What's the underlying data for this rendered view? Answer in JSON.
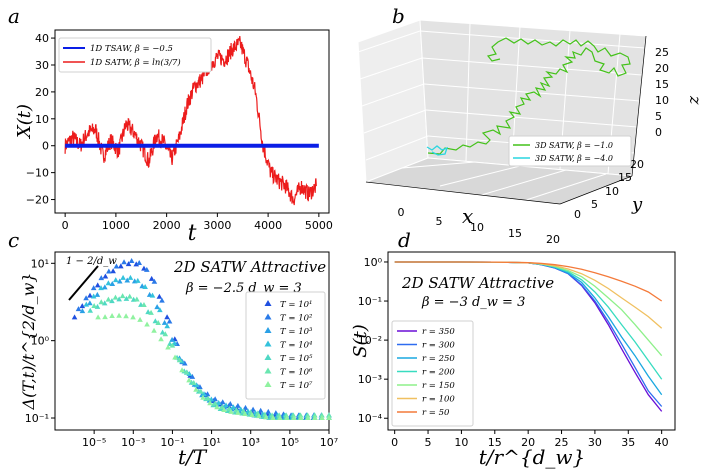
{
  "colors": {
    "tsaw": "#0a1ee6",
    "satw": "#ec1c1c",
    "green3d": "#44c21a",
    "cyan3d": "#2ad6e0",
    "pane_left": "#eeeeee",
    "pane_right": "#e3e3e3",
    "pane_floor": "#d8d8d8"
  },
  "panel_labels": {
    "a": "a",
    "b": "b",
    "c": "c",
    "d": "d"
  },
  "chart_data": [
    {
      "panel": "a",
      "type": "line",
      "xlabel": "t",
      "ylabel": "X(t)",
      "xlim": [
        -200,
        5200
      ],
      "ylim": [
        -25,
        43
      ],
      "xticks": [
        "0",
        "1000",
        "2000",
        "3000",
        "4000",
        "5000"
      ],
      "yticks": [
        "−20",
        "−10",
        "0",
        "10",
        "20",
        "30",
        "40"
      ],
      "legend_position": "top-left",
      "series": [
        {
          "name": "1D TSAW, β = −0.5",
          "color": "#0a1ee6",
          "x": [
            0,
            5000
          ],
          "y": [
            0,
            0
          ]
        },
        {
          "name": "1D SATW, β = ln(3/7)",
          "color": "#ec1c1c",
          "x": [
            0,
            150,
            300,
            450,
            600,
            750,
            900,
            1050,
            1200,
            1350,
            1500,
            1650,
            1800,
            1950,
            2100,
            2250,
            2400,
            2550,
            2700,
            2850,
            3000,
            3150,
            3300,
            3450,
            3600,
            3750,
            3900,
            4050,
            4200,
            4350,
            4500,
            4650,
            4800,
            4950
          ],
          "y": [
            0,
            3,
            0,
            5,
            6,
            -4,
            2,
            -2,
            8,
            5,
            0,
            -6,
            4,
            1,
            -5,
            3,
            15,
            22,
            25,
            30,
            33,
            32,
            36,
            38,
            30,
            20,
            0,
            -10,
            -13,
            -15,
            -20,
            -15,
            -18,
            -15
          ]
        }
      ]
    },
    {
      "panel": "b",
      "type": "scatter",
      "xlabel": "x",
      "ylabel": "y",
      "zlabel": "z",
      "xticks": [
        "0",
        "5",
        "10",
        "15",
        "20"
      ],
      "yticks": [
        "0",
        "5",
        "10",
        "15",
        "20"
      ],
      "zticks": [
        "0",
        "5",
        "10",
        "15",
        "20",
        "25"
      ],
      "legend_position": "center-right",
      "series": [
        {
          "name": "3D SATW, β = −1.0",
          "color": "#44c21a"
        },
        {
          "name": "3D SATW, β = −4.0",
          "color": "#2ad6e0"
        }
      ]
    },
    {
      "panel": "c",
      "type": "scatter",
      "title": "2D SATW Attractive",
      "annotation": "β = −2.5  d_w = 3",
      "slope_label": "1 − 2/d_w",
      "xlabel": "t/T",
      "ylabel": "Δ(T,t)/t^{2/d_w}",
      "xscale": "log",
      "yscale": "log",
      "xlim": [
        1e-07,
        10000000.0
      ],
      "ylim": [
        0.07,
        14
      ],
      "xticks": [
        "10⁻⁵",
        "10⁻³",
        "10⁻¹",
        "10¹",
        "10³",
        "10⁵",
        "10⁷"
      ],
      "yticks": [
        "10⁻¹",
        "10⁰",
        "10¹"
      ],
      "legend_position": "center-right",
      "series": [
        {
          "name": "T = 10¹",
          "peak": 0.1
        },
        {
          "name": "T = 10²",
          "peak": 0.1
        },
        {
          "name": "T = 10³",
          "peak": 0.1
        },
        {
          "name": "T = 10⁴",
          "peak": 0.1
        },
        {
          "name": "T = 10⁵",
          "peak": 0.1
        },
        {
          "name": "T = 10⁶",
          "peak": 0.1
        },
        {
          "name": "T = 10⁷",
          "peak": 0.1
        }
      ],
      "curves": {
        "x": [
          1e-06,
          3e-06,
          1e-05,
          3e-05,
          0.0001,
          0.0003,
          0.001,
          0.003,
          0.01,
          0.03,
          0.1,
          0.3,
          1,
          3,
          10,
          30,
          100,
          1000,
          10000.0,
          100000.0,
          1000000.0,
          10000000.0
        ],
        "y_top": [
          2.0,
          3.0,
          4.5,
          6.5,
          8.0,
          9.5,
          10.0,
          9.0,
          6.0,
          3.0,
          1.3,
          0.55,
          0.32,
          0.22,
          0.17,
          0.15,
          0.14,
          0.12,
          0.11,
          0.1,
          0.1,
          0.1
        ],
        "y_mid": [
          2.0,
          2.5,
          3.5,
          4.8,
          5.5,
          6.0,
          6.0,
          5.0,
          3.5,
          2.0,
          1.0,
          0.5,
          0.3,
          0.2,
          0.16,
          0.14,
          0.13,
          0.11,
          0.1,
          0.1,
          0.1,
          0.1
        ],
        "y_low": [
          2.0,
          2.2,
          2.6,
          3.0,
          3.3,
          3.5,
          3.4,
          2.8,
          2.0,
          1.3,
          0.8,
          0.45,
          0.28,
          0.2,
          0.15,
          0.13,
          0.12,
          0.11,
          0.1,
          0.1,
          0.1,
          0.1
        ],
        "y_bot": [
          2.0,
          2.0,
          2.0,
          2.0,
          2.1,
          2.1,
          2.0,
          1.8,
          1.4,
          1.0,
          0.7,
          0.42,
          0.27,
          0.19,
          0.15,
          0.13,
          0.12,
          0.11,
          0.1,
          0.1,
          0.1,
          0.1
        ]
      }
    },
    {
      "panel": "d",
      "type": "line",
      "title": "2D SATW Attractive",
      "annotation": "β = −3   d_w = 3",
      "xlabel": "t/r^{d_w}",
      "ylabel": "S(t)",
      "yscale": "log",
      "xlim": [
        -1,
        42
      ],
      "ylim": [
        5e-05,
        1.8
      ],
      "xticks": [
        "0",
        "5",
        "10",
        "15",
        "20",
        "25",
        "30",
        "35",
        "40"
      ],
      "yticks": [
        "10⁻⁴",
        "10⁻³",
        "10⁻²",
        "10⁻¹",
        "10⁰"
      ],
      "legend_position": "bottom-left",
      "x": [
        0,
        5,
        10,
        15,
        20,
        22,
        24,
        26,
        28,
        30,
        32,
        34,
        36,
        38,
        40
      ],
      "series": [
        {
          "name": "r = 350",
          "color": "#6a0fd6",
          "values": [
            1,
            1,
            1,
            0.99,
            0.95,
            0.85,
            0.7,
            0.5,
            0.25,
            0.09,
            0.025,
            0.006,
            0.0015,
            0.0004,
            0.00015
          ]
        },
        {
          "name": "r = 300",
          "color": "#2e6cf0",
          "values": [
            1,
            1,
            1,
            0.99,
            0.95,
            0.85,
            0.7,
            0.5,
            0.26,
            0.1,
            0.03,
            0.008,
            0.002,
            0.0005,
            0.0002
          ]
        },
        {
          "name": "r = 250",
          "color": "#1aa8e0",
          "values": [
            1,
            1,
            1,
            0.99,
            0.95,
            0.86,
            0.72,
            0.52,
            0.3,
            0.12,
            0.04,
            0.012,
            0.004,
            0.0012,
            0.0004
          ]
        },
        {
          "name": "r = 200",
          "color": "#38dcc0",
          "values": [
            1,
            1,
            1,
            0.99,
            0.95,
            0.87,
            0.74,
            0.56,
            0.35,
            0.17,
            0.07,
            0.025,
            0.009,
            0.003,
            0.001
          ]
        },
        {
          "name": "r = 150",
          "color": "#8ef08a",
          "values": [
            1,
            1,
            1,
            0.99,
            0.95,
            0.88,
            0.77,
            0.6,
            0.42,
            0.24,
            0.12,
            0.06,
            0.025,
            0.01,
            0.004
          ]
        },
        {
          "name": "r = 100",
          "color": "#f0c060",
          "values": [
            1,
            1,
            1,
            0.99,
            0.96,
            0.9,
            0.8,
            0.66,
            0.5,
            0.34,
            0.21,
            0.12,
            0.07,
            0.04,
            0.02
          ]
        },
        {
          "name": "r = 50",
          "color": "#f47a3a",
          "values": [
            1,
            1,
            1,
            0.99,
            0.96,
            0.92,
            0.85,
            0.76,
            0.65,
            0.53,
            0.42,
            0.32,
            0.24,
            0.17,
            0.1
          ]
        }
      ]
    }
  ]
}
